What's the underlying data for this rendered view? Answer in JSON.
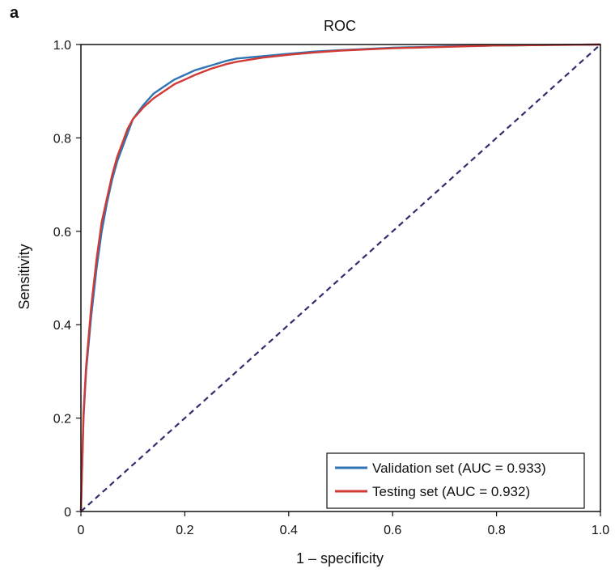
{
  "chart_data": {
    "type": "line",
    "panel_label": "a",
    "title": "ROC",
    "xlabel": "1 – specificity",
    "ylabel": "Sensitivity",
    "xlim": [
      0,
      1
    ],
    "ylim": [
      0,
      1
    ],
    "x_ticks": [
      "0",
      "0.2",
      "0.4",
      "0.6",
      "0.8",
      "1.0"
    ],
    "y_ticks": [
      "0",
      "0.2",
      "0.4",
      "0.6",
      "0.8",
      "1.0"
    ],
    "grid": false,
    "legend_position": "bottom-right",
    "colors": {
      "validation": "#2f74b5",
      "testing": "#d13a35",
      "diagonal": "#2f2f6e",
      "axis": "#111111"
    },
    "series": [
      {
        "name": "Validation set (AUC = 0.933)",
        "x": [
          0,
          0.005,
          0.01,
          0.02,
          0.03,
          0.04,
          0.05,
          0.06,
          0.07,
          0.08,
          0.09,
          0.1,
          0.12,
          0.14,
          0.16,
          0.18,
          0.2,
          0.22,
          0.25,
          0.28,
          0.3,
          0.35,
          0.4,
          0.45,
          0.5,
          0.6,
          0.7,
          0.8,
          0.9,
          1.0
        ],
        "y": [
          0,
          0.2,
          0.3,
          0.42,
          0.52,
          0.6,
          0.66,
          0.71,
          0.75,
          0.78,
          0.81,
          0.84,
          0.87,
          0.895,
          0.91,
          0.925,
          0.935,
          0.945,
          0.955,
          0.965,
          0.97,
          0.975,
          0.98,
          0.985,
          0.988,
          0.993,
          0.996,
          0.998,
          0.999,
          1.0
        ]
      },
      {
        "name": "Testing set (AUC = 0.932)",
        "x": [
          0,
          0.005,
          0.01,
          0.02,
          0.03,
          0.04,
          0.05,
          0.06,
          0.07,
          0.08,
          0.09,
          0.1,
          0.12,
          0.14,
          0.16,
          0.18,
          0.2,
          0.22,
          0.25,
          0.28,
          0.3,
          0.35,
          0.4,
          0.45,
          0.5,
          0.6,
          0.7,
          0.8,
          0.9,
          1.0
        ],
        "y": [
          0,
          0.21,
          0.31,
          0.44,
          0.54,
          0.62,
          0.67,
          0.72,
          0.76,
          0.79,
          0.82,
          0.84,
          0.865,
          0.885,
          0.9,
          0.915,
          0.925,
          0.935,
          0.948,
          0.958,
          0.963,
          0.972,
          0.978,
          0.983,
          0.987,
          0.992,
          0.995,
          0.998,
          0.999,
          1.0
        ]
      }
    ],
    "reference_line": {
      "x": [
        0,
        1
      ],
      "y": [
        0,
        1
      ]
    }
  }
}
